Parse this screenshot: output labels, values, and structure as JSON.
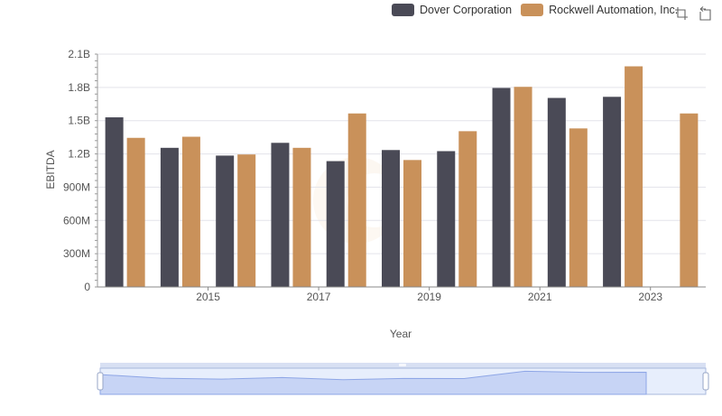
{
  "legend": {
    "items": [
      {
        "label": "Dover Corporation",
        "color": "#4a4a56"
      },
      {
        "label": "Rockwell Automation, Inc.",
        "color": "#c9915a"
      }
    ]
  },
  "toolbar": {
    "icons": [
      "zoom-icon",
      "restore-icon"
    ]
  },
  "chart_data": {
    "type": "bar",
    "title": "",
    "xlabel": "Year",
    "ylabel": "EBITDA",
    "x_tick_labels": [
      "2015",
      "2017",
      "2019",
      "2021",
      "2023"
    ],
    "y_tick_labels": [
      "0",
      "300M",
      "600M",
      "900M",
      "1.2B",
      "1.5B",
      "1.8B",
      "2.1B"
    ],
    "ylim": [
      0,
      2100000000
    ],
    "categories": [
      "2014",
      "2015",
      "2016",
      "2017",
      "2018",
      "2019",
      "2020",
      "2021",
      "2022",
      "2023",
      "2024"
    ],
    "series": [
      {
        "name": "Dover Corporation",
        "color": "#4a4a56",
        "values": [
          1530000000,
          1255000000,
          1185000000,
          1300000000,
          1135000000,
          1235000000,
          1225000000,
          1795000000,
          1705000000,
          1715000000,
          null
        ]
      },
      {
        "name": "Rockwell Automation, Inc.",
        "color": "#c9915a",
        "values": [
          1345000000,
          1355000000,
          1195000000,
          1255000000,
          1565000000,
          1145000000,
          1405000000,
          1805000000,
          1430000000,
          1990000000,
          1565000000
        ]
      }
    ],
    "grid": true,
    "legend_position": "top-right"
  }
}
